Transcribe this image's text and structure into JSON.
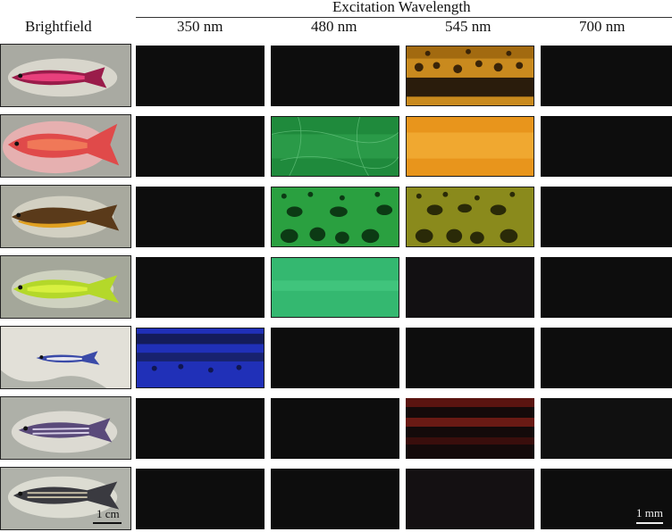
{
  "header": {
    "group_title": "Excitation Wavelength",
    "brightfield_label": "Brightfield",
    "wavelengths": [
      "350 nm",
      "480 nm",
      "545 nm",
      "700 nm"
    ]
  },
  "rows": 7,
  "scale_bars": {
    "brightfield": "1 cm",
    "fluorescence": "1 mm"
  },
  "colors": {
    "background": "#ffffff",
    "dark_panel": "#0d0d0d",
    "uv_blue": "#2233c8",
    "green": "#2fa64a",
    "bright_green": "#36c27a",
    "orange": "#e89a20",
    "olive": "#8f8a22",
    "red": "#7a1a12"
  }
}
